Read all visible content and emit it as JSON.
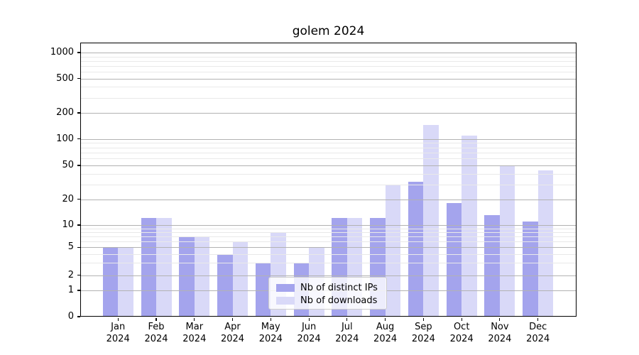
{
  "title": "golem 2024",
  "legend": {
    "position": "lower-center",
    "items": [
      {
        "label": "Nb of distinct IPs",
        "color": "#a4a4ed"
      },
      {
        "label": "Nb of downloads",
        "color": "#d9d9f8"
      }
    ]
  },
  "chart_data": {
    "type": "bar",
    "title": "golem 2024",
    "categories": [
      "Jan 2024",
      "Feb 2024",
      "Mar 2024",
      "Apr 2024",
      "May 2024",
      "Jun 2024",
      "Jul 2024",
      "Aug 2024",
      "Sep 2024",
      "Oct 2024",
      "Nov 2024",
      "Dec 2024"
    ],
    "series": [
      {
        "name": "Nb of distinct IPs",
        "color": "#a4a4ed",
        "values": [
          5,
          12,
          7,
          4,
          3,
          3,
          12,
          12,
          32,
          18,
          13,
          11
        ]
      },
      {
        "name": "Nb of downloads",
        "color": "#d9d9f8",
        "values": [
          5,
          12,
          7,
          6,
          8,
          5,
          12,
          29,
          145,
          110,
          50,
          44
        ]
      }
    ],
    "xlabel": "",
    "ylabel": "",
    "yscale": "quasi-log (symlog-like)",
    "yticks": [
      0,
      1,
      2,
      5,
      10,
      20,
      50,
      100,
      200,
      500,
      1000
    ],
    "ylim": [
      0,
      1300
    ],
    "grid": "both-horizontal, drawn above bars",
    "legend_position": "lower center inside plot",
    "colors": {
      "axis": "#000000",
      "grid_major": "#b2b2b2",
      "grid_minor": "#e9e9e9",
      "background": "#ffffff"
    }
  }
}
